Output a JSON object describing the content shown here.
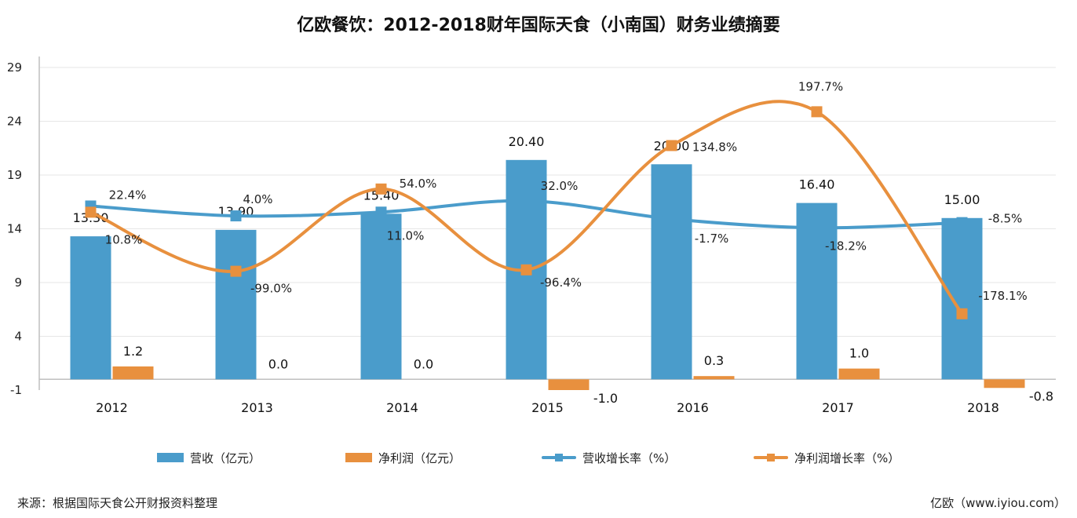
{
  "title": "亿欧餐饮：2012-2018财年国际天食（小南国）财务业绩摘要",
  "source": "来源：根据国际天食公开财报资料整理",
  "credit": "亿欧（www.iyiou.com）",
  "colors": {
    "blue": "#4a9ccb",
    "orange": "#e8903e",
    "axis": "#bfbfbf",
    "grid": "#e6e6e6"
  },
  "chart_data": {
    "type": "bar",
    "categories": [
      "2012",
      "2013",
      "2014",
      "2015",
      "2016",
      "2017",
      "2018"
    ],
    "ylim": [
      -1,
      29
    ],
    "yticks": [
      -1,
      4,
      9,
      14,
      19,
      24,
      29
    ],
    "grid": true,
    "legend_position": "bottom",
    "series": [
      {
        "name": "营收（亿元）",
        "kind": "bar",
        "color": "#4a9ccb",
        "values": [
          13.3,
          13.9,
          15.4,
          20.4,
          20.0,
          16.4,
          15.0
        ],
        "labels": [
          "13.30",
          "13.90",
          "15.40",
          "20.40",
          "20.00",
          "16.40",
          "15.00"
        ]
      },
      {
        "name": "净利润（亿元）",
        "kind": "bar",
        "color": "#e8903e",
        "values": [
          1.2,
          0.0,
          0.0,
          -1.0,
          0.3,
          1.0,
          -0.8
        ],
        "labels": [
          "1.2",
          "0.0",
          "0.0",
          "-1.0",
          "0.3",
          "1.0",
          "-0.8"
        ]
      },
      {
        "name": "营收增长率（%）",
        "kind": "line",
        "color": "#4a9ccb",
        "secondary_axis": true,
        "values": [
          22.4,
          4.0,
          11.0,
          32.0,
          -1.7,
          -18.2,
          -8.5
        ],
        "labels": [
          "22.4%",
          "4.0%",
          "11.0%",
          "32.0%",
          "-1.7%",
          "-18.2%",
          "-8.5%"
        ]
      },
      {
        "name": "净利润增长率（%）",
        "kind": "line",
        "color": "#e8903e",
        "secondary_axis": true,
        "values": [
          10.8,
          -99.0,
          54.0,
          -96.4,
          134.8,
          197.7,
          -178.1
        ],
        "labels": [
          "10.8%",
          "-99.0%",
          "54.0%",
          "-96.4%",
          "134.8%",
          "197.7%",
          "-178.1%"
        ]
      }
    ]
  }
}
